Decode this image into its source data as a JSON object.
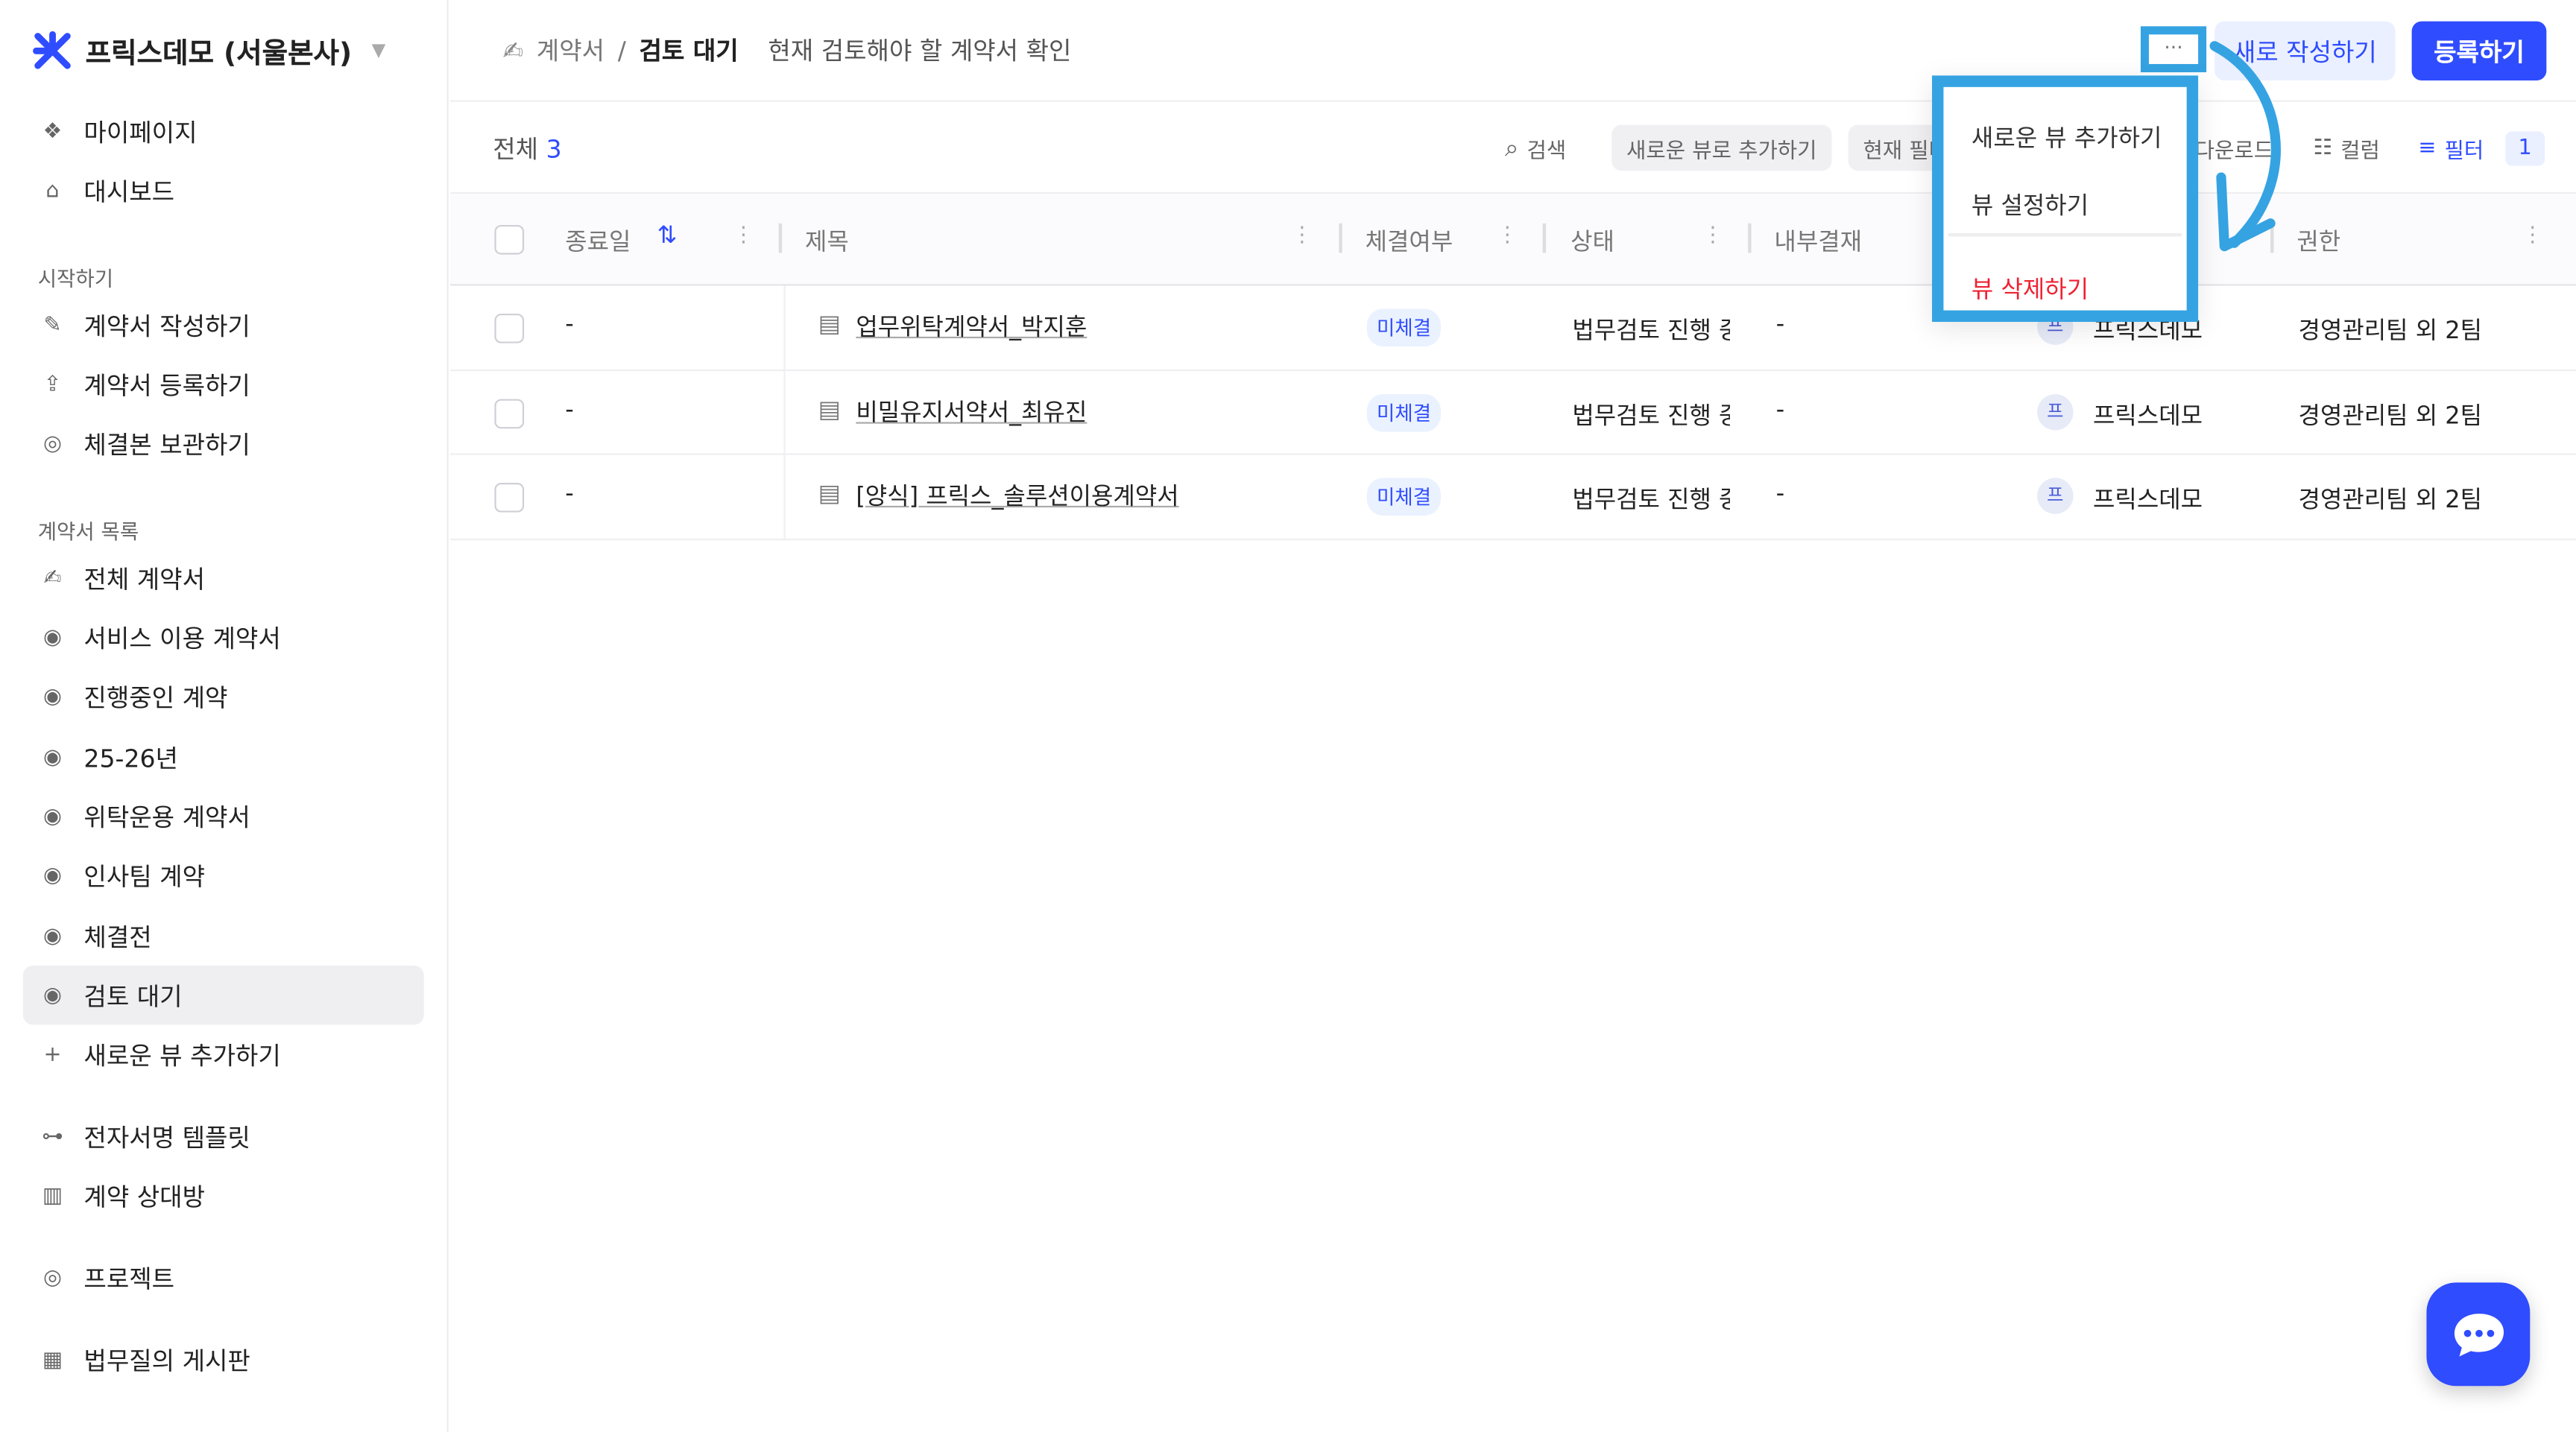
{
  "brand": {
    "name": "프릭스데모 (서울본사)"
  },
  "sidebar": {
    "top": [
      {
        "label": "마이페이지",
        "icon": "diamond-icon"
      },
      {
        "label": "대시보드",
        "icon": "home-icon"
      }
    ],
    "start_title": "시작하기",
    "start": [
      {
        "label": "계약서 작성하기",
        "icon": "pencil-icon"
      },
      {
        "label": "계약서 등록하기",
        "icon": "upload-icon"
      },
      {
        "label": "체결본 보관하기",
        "icon": "database-icon"
      }
    ],
    "list_title": "계약서 목록",
    "list": [
      {
        "label": "전체 계약서",
        "icon": "signature-icon"
      },
      {
        "label": "서비스 이용 계약서",
        "icon": "eye-icon"
      },
      {
        "label": "진행중인 계약",
        "icon": "eye-icon"
      },
      {
        "label": "25-26년",
        "icon": "eye-icon"
      },
      {
        "label": "위탁운용 계약서",
        "icon": "eye-icon"
      },
      {
        "label": "인사팀 계약",
        "icon": "eye-icon"
      },
      {
        "label": "체결전",
        "icon": "eye-icon"
      },
      {
        "label": "검토 대기",
        "icon": "eye-icon",
        "active": true
      },
      {
        "label": "새로운 뷰 추가하기",
        "icon": "plus-icon"
      }
    ],
    "bottom": [
      {
        "label": "전자서명 템플릿",
        "icon": "template-icon"
      },
      {
        "label": "계약 상대방",
        "icon": "building-icon"
      },
      {
        "label": "프로젝트",
        "icon": "target-icon"
      },
      {
        "label": "법무질의 게시판",
        "icon": "board-icon"
      }
    ]
  },
  "header": {
    "crumb_root": "계약서",
    "crumb_current": "검토 대기",
    "description": "현재 검토해야 할 계약서 확인",
    "more": "···",
    "new_button": "새로 작성하기",
    "register_button": "등록하기"
  },
  "toolbar": {
    "total_label": "전체",
    "total_count": "3",
    "search": "검색",
    "add_view": "새로운 뷰로 추가하기",
    "current_filter": "현재 필터",
    "download": "다운로드",
    "columns": "컬럼",
    "filter": "필터",
    "filter_count": "1"
  },
  "table": {
    "columns": [
      "종료일",
      "제목",
      "체결여부",
      "상태",
      "내부결재",
      "권한"
    ],
    "rows": [
      {
        "end": "-",
        "title": "업무위탁계약서_박지훈",
        "signed": "미체결",
        "status": "법무검토 진행 중",
        "approval": "-",
        "avatar": "프",
        "owner": "프릭스데모",
        "permission": "경영관리팀 외 2팀"
      },
      {
        "end": "-",
        "title": "비밀유지서약서_최유진",
        "signed": "미체결",
        "status": "법무검토 진행 중",
        "approval": "-",
        "avatar": "프",
        "owner": "프릭스데모",
        "permission": "경영관리팀 외 2팀"
      },
      {
        "end": "-",
        "title": "[양식] 프릭스_솔루션이용계약서",
        "signed": "미체결",
        "status": "법무검토 진행 중",
        "approval": "-",
        "avatar": "프",
        "owner": "프릭스데모",
        "permission": "경영관리팀 외 2팀"
      }
    ]
  },
  "menu": {
    "items": [
      "새로운 뷰 추가하기",
      "뷰 설정하기"
    ],
    "danger": "뷰 삭제하기"
  },
  "colors": {
    "accent": "#2f4cff",
    "highlight": "#35a3e2",
    "danger": "#ee2233"
  }
}
